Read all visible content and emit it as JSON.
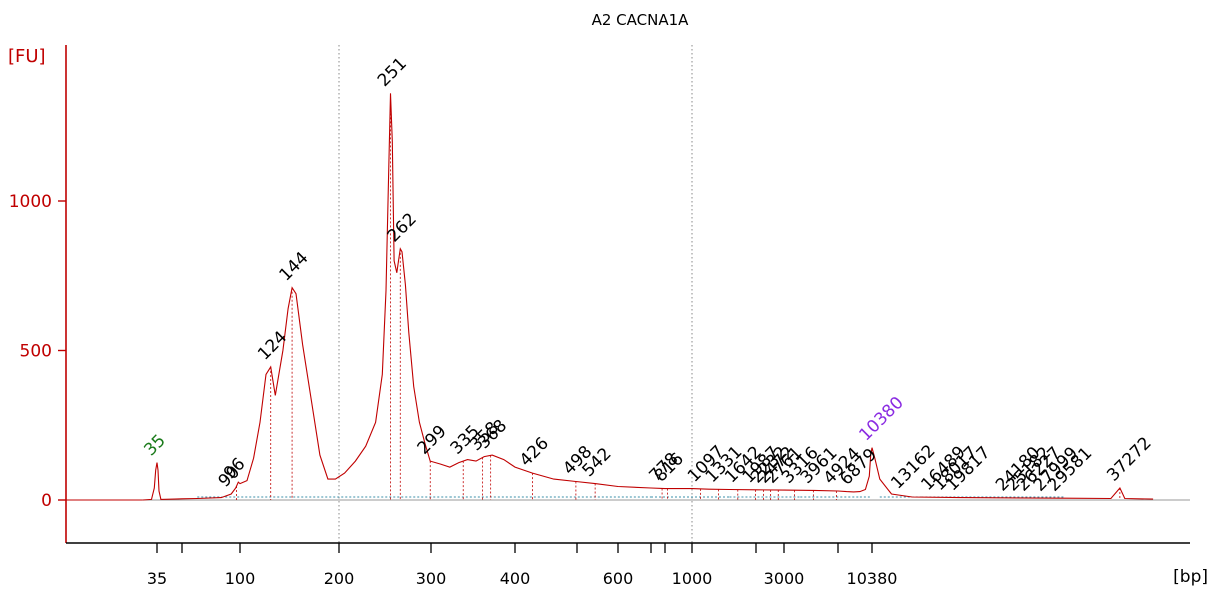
{
  "chart_data": {
    "type": "line",
    "title": "A2 CACNA1A",
    "ylabel": "[FU]",
    "xlabel": "[bp]",
    "ylim": [
      -140,
      1500
    ],
    "y_ticks": [
      0,
      500,
      1000
    ],
    "x_scale": "nonlinear-ladder",
    "x_ticks": [
      "35",
      "100",
      "200",
      "300",
      "400",
      "600",
      "1000",
      "3000",
      "10380"
    ],
    "x_tick_positions_bp": [
      35,
      50,
      100,
      200,
      300,
      400,
      500,
      600,
      700,
      800,
      1000,
      2000,
      3000,
      5000,
      10380
    ],
    "grid": "vertical dotted lines at 200 and 1000 bp",
    "colors": {
      "axis": "#c00000",
      "trace": "#c00000",
      "peak_label": "#000000",
      "lower_marker": "#1a7a1a",
      "upper_marker": "#8a2be2"
    },
    "series": [
      {
        "x": [
          30,
          33,
          34,
          34.5,
          35,
          35.5,
          36,
          37,
          45,
          50,
          60,
          80,
          90,
          95,
          98,
          100,
          105,
          110,
          115,
          120,
          124,
          128,
          135,
          140,
          144,
          148,
          155,
          165,
          175,
          185,
          195,
          205,
          215,
          225,
          235,
          242,
          246,
          249,
          251,
          253,
          255,
          258,
          260,
          262,
          264,
          268,
          272,
          278,
          285,
          292,
          299,
          310,
          320,
          330,
          340,
          350,
          360,
          370,
          385,
          400,
          426,
          460,
          498,
          542,
          600,
          700,
          800,
          1000,
          1200,
          1500,
          2000,
          3000,
          4000,
          5000,
          6000,
          7000,
          8000,
          9000,
          9800,
          10100,
          10380,
          10600,
          11000,
          12000,
          14000,
          20000,
          30000,
          36000,
          37272,
          38000,
          45000
        ],
        "y": [
          0,
          2,
          40,
          100,
          125,
          100,
          30,
          2,
          3,
          4,
          5,
          8,
          20,
          40,
          60,
          55,
          65,
          140,
          260,
          420,
          445,
          350,
          500,
          640,
          710,
          690,
          520,
          330,
          150,
          70,
          70,
          90,
          130,
          180,
          260,
          420,
          700,
          1100,
          1360,
          1200,
          800,
          760,
          800,
          840,
          830,
          720,
          560,
          380,
          260,
          190,
          130,
          120,
          110,
          125,
          135,
          130,
          145,
          150,
          135,
          110,
          90,
          70,
          62,
          55,
          45,
          40,
          38,
          38,
          36,
          35,
          34,
          33,
          32,
          30,
          28,
          27,
          28,
          35,
          80,
          150,
          175,
          140,
          70,
          20,
          10,
          8,
          6,
          5,
          40,
          5,
          3
        ]
      }
    ],
    "peak_labels": [
      {
        "bp": 35,
        "label": "35",
        "kind": "lower_marker"
      },
      {
        "bp": 90,
        "label": "90",
        "kind": "peak"
      },
      {
        "bp": 96,
        "label": "96",
        "kind": "peak"
      },
      {
        "bp": 124,
        "label": "124",
        "kind": "peak"
      },
      {
        "bp": 144,
        "label": "144",
        "kind": "peak"
      },
      {
        "bp": 251,
        "label": "251",
        "kind": "peak"
      },
      {
        "bp": 262,
        "label": "262",
        "kind": "peak"
      },
      {
        "bp": 299,
        "label": "299",
        "kind": "peak"
      },
      {
        "bp": 335,
        "label": "335",
        "kind": "peak"
      },
      {
        "bp": 358,
        "label": "358",
        "kind": "peak"
      },
      {
        "bp": 368,
        "label": "368",
        "kind": "peak"
      },
      {
        "bp": 426,
        "label": "426",
        "kind": "peak"
      },
      {
        "bp": 498,
        "label": "498",
        "kind": "peak"
      },
      {
        "bp": 542,
        "label": "542",
        "kind": "peak"
      },
      {
        "bp": 778,
        "label": "778",
        "kind": "peak"
      },
      {
        "bp": 816,
        "label": "816",
        "kind": "peak"
      },
      {
        "bp": 1097,
        "label": "1097",
        "kind": "peak"
      },
      {
        "bp": 1331,
        "label": "1331",
        "kind": "peak"
      },
      {
        "bp": 1642,
        "label": "1642",
        "kind": "peak"
      },
      {
        "bp": 1987,
        "label": "1987",
        "kind": "peak"
      },
      {
        "bp": 2232,
        "label": "2232",
        "kind": "peak"
      },
      {
        "bp": 2472,
        "label": "2472",
        "kind": "peak"
      },
      {
        "bp": 2761,
        "label": "2761",
        "kind": "peak"
      },
      {
        "bp": 3316,
        "label": "3316",
        "kind": "peak"
      },
      {
        "bp": 3961,
        "label": "3961",
        "kind": "peak"
      },
      {
        "bp": 4924,
        "label": "4924",
        "kind": "peak"
      },
      {
        "bp": 6879,
        "label": "6879",
        "kind": "peak"
      },
      {
        "bp": 10380,
        "label": "10380",
        "kind": "upper_marker"
      },
      {
        "bp": 13162,
        "label": "13162",
        "kind": "peak"
      },
      {
        "bp": 16489,
        "label": "16489",
        "kind": "peak"
      },
      {
        "bp": 18017,
        "label": "18017",
        "kind": "peak"
      },
      {
        "bp": 19817,
        "label": "19817",
        "kind": "peak"
      },
      {
        "bp": 24180,
        "label": "24180",
        "kind": "peak"
      },
      {
        "bp": 25182,
        "label": "25182",
        "kind": "peak"
      },
      {
        "bp": 26227,
        "label": "26227",
        "kind": "peak"
      },
      {
        "bp": 27999,
        "label": "27999",
        "kind": "peak"
      },
      {
        "bp": 29581,
        "label": "29581",
        "kind": "peak"
      },
      {
        "bp": 37272,
        "label": "37272",
        "kind": "peak"
      }
    ]
  }
}
